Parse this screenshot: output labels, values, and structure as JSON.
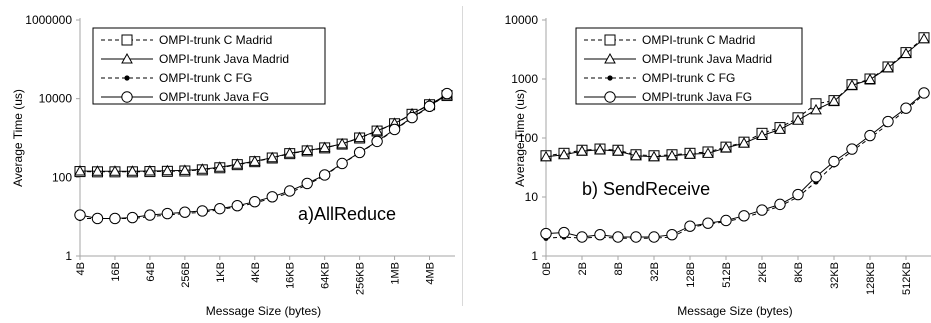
{
  "legend_entries": [
    "OMPI-trunk C Madrid",
    "OMPI-trunk Java Madrid",
    "OMPI-trunk C FG",
    "OMPI-trunk Java FG"
  ],
  "colors": {
    "line": "#000000",
    "axis": "#a6a6a6",
    "frame": "#000000",
    "text": "#000000",
    "background": "#ffffff"
  },
  "chart_data": [
    {
      "type": "line",
      "panel_label": "a)AllReduce",
      "xlabel": "Message Size (bytes)",
      "ylabel": "Average Time (us)",
      "yscale": "log",
      "ylim": [
        1,
        1000000
      ],
      "ytick_values": [
        1,
        100,
        10000,
        1000000
      ],
      "ytick_labels": [
        "1",
        "100",
        "10000",
        "1000000"
      ],
      "x": [
        "4B",
        "8B",
        "16B",
        "32B",
        "64B",
        "128B",
        "256B",
        "512B",
        "1KB",
        "2KB",
        "4KB",
        "8KB",
        "16KB",
        "32KB",
        "64KB",
        "128KB",
        "256KB",
        "512KB",
        "1MB",
        "2MB",
        "4MB",
        "8MB"
      ],
      "xtick_labels": [
        "4B",
        "16B",
        "64B",
        "256B",
        "1KB",
        "4KB",
        "16KB",
        "64KB",
        "256KB",
        "1MB",
        "4MB"
      ],
      "grid": false,
      "legend_position": "top-left",
      "series": [
        {
          "name": "OMPI-trunk C Madrid",
          "style": "dashed",
          "marker": "square",
          "values": [
            140,
            138,
            138,
            138,
            140,
            142,
            145,
            155,
            175,
            210,
            250,
            310,
            400,
            470,
            560,
            700,
            1000,
            1500,
            2300,
            4000,
            7000,
            12000
          ]
        },
        {
          "name": "OMPI-trunk Java Madrid",
          "style": "solid",
          "marker": "triangle",
          "values": [
            145,
            143,
            143,
            143,
            145,
            147,
            150,
            160,
            180,
            215,
            255,
            315,
            410,
            480,
            570,
            710,
            1020,
            1520,
            2350,
            4100,
            7200,
            12300
          ]
        },
        {
          "name": "OMPI-trunk C FG",
          "style": "dashed",
          "marker": "dot",
          "values": [
            9,
            9,
            9,
            9,
            10,
            11,
            12,
            13,
            15,
            18,
            22,
            30,
            40,
            65,
            110,
            220,
            420,
            800,
            1600,
            3200,
            6200,
            13000
          ]
        },
        {
          "name": "OMPI-trunk Java FG",
          "style": "solid",
          "marker": "circle",
          "values": [
            11,
            9,
            9,
            9.5,
            11,
            12,
            13,
            14,
            16,
            19,
            24,
            32,
            45,
            70,
            115,
            225,
            430,
            820,
            1650,
            3300,
            6400,
            13500
          ]
        }
      ]
    },
    {
      "type": "line",
      "panel_label": "b) SendReceive",
      "xlabel": "Message Size (bytes)",
      "ylabel": "Average Time (us)",
      "yscale": "log",
      "ylim": [
        1,
        10000
      ],
      "ytick_values": [
        1,
        10,
        100,
        1000,
        10000
      ],
      "ytick_labels": [
        "1",
        "10",
        "100",
        "1000",
        "10000"
      ],
      "x": [
        "0B",
        "1B",
        "2B",
        "4B",
        "8B",
        "16B",
        "32B",
        "64B",
        "128B",
        "256B",
        "512B",
        "1KB",
        "2KB",
        "4KB",
        "8KB",
        "16KB",
        "32KB",
        "64KB",
        "128KB",
        "256KB",
        "512KB",
        "1MB"
      ],
      "xtick_labels": [
        "0B",
        "2B",
        "8B",
        "32B",
        "128B",
        "512B",
        "2KB",
        "8KB",
        "32KB",
        "128KB",
        "512KB"
      ],
      "grid": false,
      "legend_position": "top-left",
      "series": [
        {
          "name": "OMPI-trunk C Madrid",
          "style": "dashed",
          "marker": "square",
          "values": [
            50,
            55,
            62,
            65,
            62,
            52,
            50,
            52,
            55,
            58,
            70,
            85,
            120,
            150,
            220,
            380,
            430,
            800,
            1000,
            1600,
            2800,
            5000
          ]
        },
        {
          "name": "OMPI-trunk Java Madrid",
          "style": "solid",
          "marker": "triangle",
          "values": [
            48,
            52,
            60,
            63,
            60,
            50,
            48,
            50,
            53,
            55,
            68,
            82,
            110,
            140,
            200,
            300,
            420,
            780,
            980,
            1550,
            2700,
            4800
          ]
        },
        {
          "name": "OMPI-trunk C FG",
          "style": "dashed",
          "marker": "dot",
          "values": [
            2.0,
            2.1,
            2.0,
            2.1,
            2.0,
            2.0,
            2.0,
            2.1,
            3.0,
            3.5,
            3.8,
            4.5,
            5.5,
            7.0,
            10,
            18,
            35,
            60,
            100,
            170,
            300,
            550
          ]
        },
        {
          "name": "OMPI-trunk Java FG",
          "style": "solid",
          "marker": "circle",
          "values": [
            2.4,
            2.5,
            2.1,
            2.3,
            2.1,
            2.1,
            2.1,
            2.3,
            3.2,
            3.6,
            4.0,
            4.8,
            6.0,
            7.5,
            11,
            22,
            40,
            65,
            110,
            190,
            320,
            580
          ]
        }
      ]
    }
  ]
}
